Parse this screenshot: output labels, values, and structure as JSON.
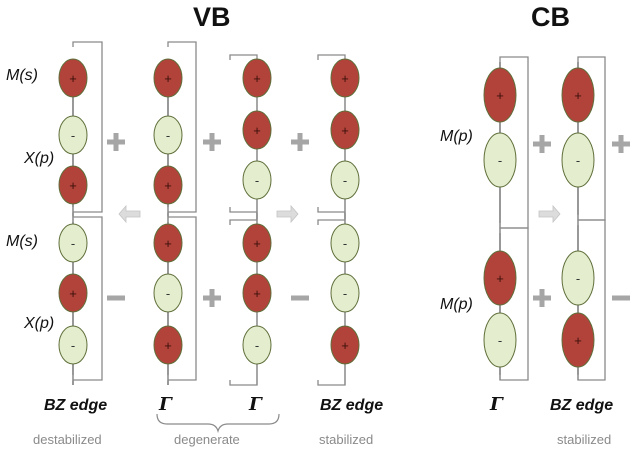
{
  "headers": {
    "vb": "VB",
    "cb": "CB"
  },
  "site_labels": {
    "vb_top_m": "M(s)",
    "vb_top_x": "X(p)",
    "vb_bot_m": "M(s)",
    "vb_bot_x": "X(p)",
    "cb_top_m": "M(p)",
    "cb_bot_m": "M(p)"
  },
  "bottom_labels": {
    "vb_left": "BZ edge",
    "vb_gamma1": "Γ",
    "vb_gamma2": "Γ",
    "vb_right": "BZ edge",
    "cb_gamma": "Γ",
    "cb_right": "BZ edge"
  },
  "notes": {
    "destabilized": "destabilized",
    "degenerate": "degenerate",
    "stabilized_vb": "stabilized",
    "stabilized_cb": "stabilized"
  },
  "signs": {
    "plus": "+",
    "minus": "-"
  },
  "colors": {
    "positive_lobe": "#b2433a",
    "negative_lobe": "#e4eecf",
    "lobe_outline": "#5f6f3a",
    "bracket": "#8a8a8a",
    "operator": "#a6a6a6",
    "arrow": "#dcdcdc"
  },
  "orbital_columns": [
    {
      "column": "vb-1",
      "top": [
        "+",
        "-",
        "+"
      ],
      "bottom": [
        "-",
        "+",
        "-"
      ],
      "top_operator": "+",
      "bottom_operator": "-"
    },
    {
      "column": "vb-2",
      "top": [
        "+",
        "-",
        "+"
      ],
      "bottom": [
        "+",
        "-",
        "+"
      ],
      "top_operator": "+",
      "bottom_operator": "+"
    },
    {
      "column": "vb-3",
      "top": [
        "+",
        "+",
        "-"
      ],
      "bottom": [
        "+",
        "+",
        "-"
      ],
      "top_operator": "+",
      "bottom_operator": "-"
    },
    {
      "column": "vb-4",
      "top": [
        "+",
        "+",
        "-"
      ],
      "bottom": [
        "-",
        "-",
        "+"
      ]
    },
    {
      "column": "cb-1",
      "top": [
        "+",
        "-"
      ],
      "bottom": [
        "+",
        "-"
      ],
      "top_operator": "+",
      "bottom_operator": "+"
    },
    {
      "column": "cb-2",
      "top": [
        "+",
        "-"
      ],
      "bottom": [
        "-",
        "+"
      ],
      "top_operator": "+",
      "bottom_operator": "-"
    }
  ]
}
